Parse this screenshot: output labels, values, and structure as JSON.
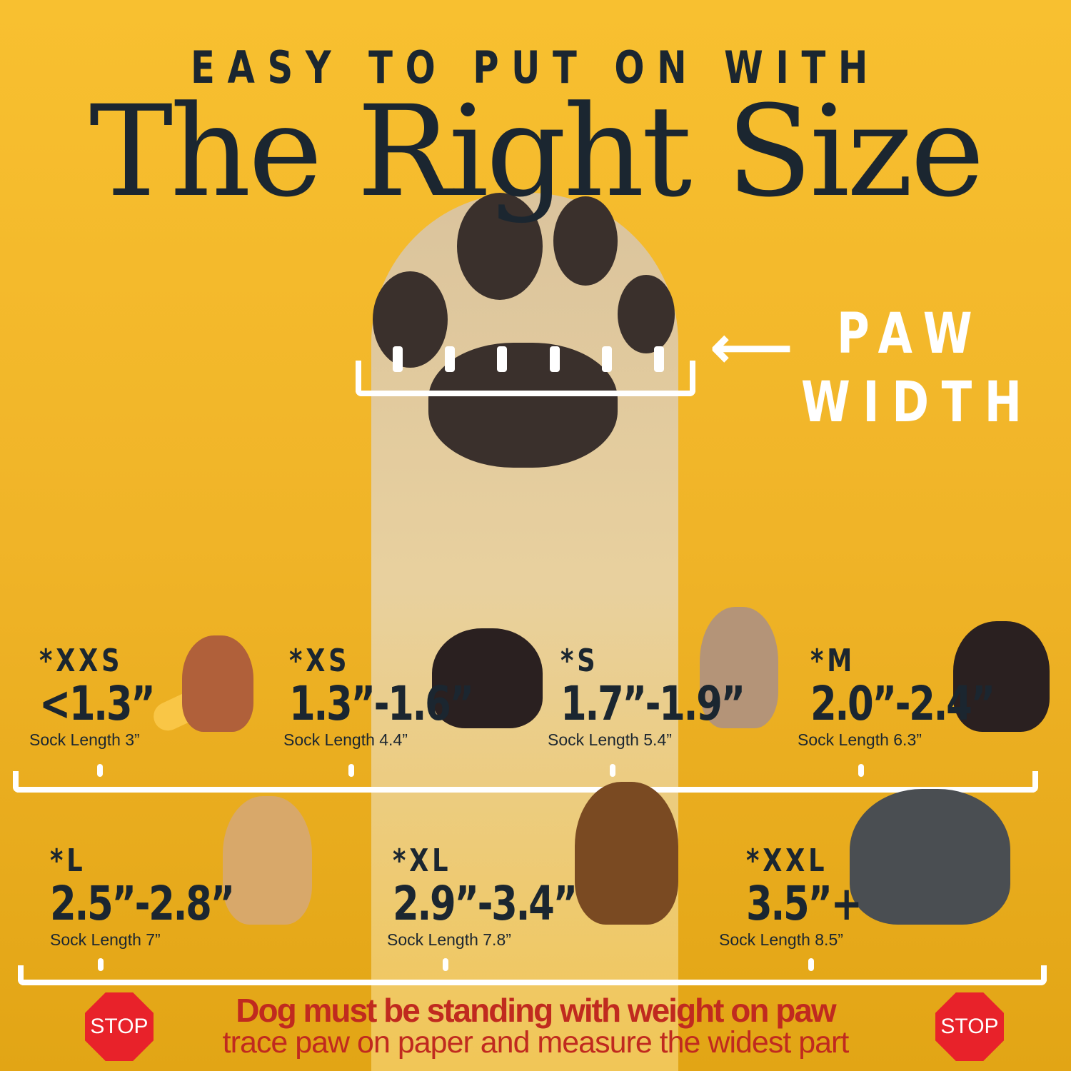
{
  "header": {
    "eyebrow": "EASY TO PUT ON WITH",
    "title": "The Right Size"
  },
  "paw_label": {
    "line1": "PAW",
    "line2": "WIDTH",
    "icon": "arrow-left-icon"
  },
  "sizes": [
    {
      "code": "*XXS",
      "range": "<1.3”",
      "sock": "Sock Length 3”",
      "dog": "chihuahua"
    },
    {
      "code": "*XS",
      "range": "1.3”-1.6”",
      "sock": "Sock Length 4.4”",
      "dog": "yorkie"
    },
    {
      "code": "*S",
      "range": "1.7”-1.9”",
      "sock": "Sock Length 5.4”",
      "dog": "french-bulldog"
    },
    {
      "code": "*M",
      "range": "2.0”-2.4”",
      "sock": "Sock Length 6.3”",
      "dog": "bernese"
    },
    {
      "code": "*L",
      "range": "2.5”-2.8”",
      "sock": "Sock Length 7”",
      "dog": "golden-retriever"
    },
    {
      "code": "*XL",
      "range": "2.9”-3.4”",
      "sock": "Sock Length 7.8”",
      "dog": "german-shepherd"
    },
    {
      "code": "*XXL",
      "range": "3.5”+",
      "sock": "Sock Length 8.5”",
      "dog": "great-dane"
    }
  ],
  "warning": {
    "stop": "STOP",
    "line1": "Dog must be standing with weight on paw",
    "line2": "trace paw on paper and measure the widest part"
  },
  "colors": {
    "background": "#f0b428",
    "text": "#1b2630",
    "warning": "#c02a1f",
    "stop": "#e8222a"
  }
}
